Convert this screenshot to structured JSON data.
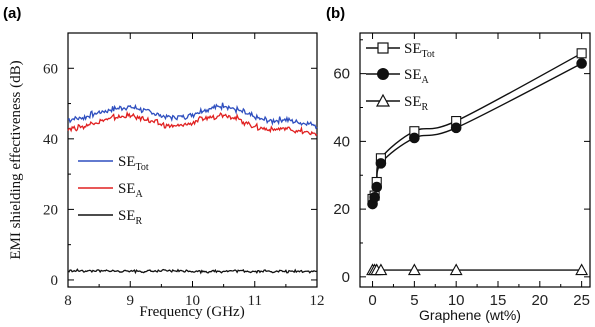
{
  "chart_data": [
    {
      "panel": "(a)",
      "type": "line",
      "xlabel": "Frequency (GHz)",
      "ylabel": "EMI shielding effectiveness (dB)",
      "xlim": [
        8,
        12
      ],
      "ylim": [
        -2,
        70
      ],
      "xticks": [
        "8",
        "9",
        "10",
        "11",
        "12"
      ],
      "yticks": [
        "0",
        "20",
        "40",
        "60"
      ],
      "grid": false,
      "legend_placement": "middle-left",
      "series": [
        {
          "name": "SE_Tot",
          "name_main": "SE",
          "name_sub": "Tot",
          "color": "#2f4fbf",
          "x": [
            8.0,
            8.25,
            8.5,
            8.75,
            9.0,
            9.25,
            9.5,
            9.75,
            10.0,
            10.25,
            10.5,
            10.75,
            11.0,
            11.25,
            11.5,
            11.75,
            12.0
          ],
          "y": [
            45.5,
            46.0,
            47.5,
            48.5,
            49.0,
            48.0,
            46.5,
            46.0,
            47.0,
            48.5,
            49.5,
            48.0,
            46.0,
            45.0,
            45.5,
            44.5,
            44.0
          ]
        },
        {
          "name": "SE_A",
          "name_main": "SE",
          "name_sub": "A",
          "color": "#e02020",
          "x": [
            8.0,
            8.25,
            8.5,
            8.75,
            9.0,
            9.25,
            9.5,
            9.75,
            10.0,
            10.25,
            10.5,
            10.75,
            11.0,
            11.25,
            11.5,
            11.75,
            12.0
          ],
          "y": [
            43.0,
            43.5,
            45.0,
            46.0,
            46.5,
            45.5,
            44.0,
            43.5,
            44.5,
            46.0,
            47.0,
            45.5,
            43.5,
            42.5,
            43.0,
            42.0,
            41.5
          ]
        },
        {
          "name": "SE_R",
          "name_main": "SE",
          "name_sub": "R",
          "color": "#111111",
          "x": [
            8.0,
            8.25,
            8.5,
            8.75,
            9.0,
            9.25,
            9.5,
            9.75,
            10.0,
            10.25,
            10.5,
            10.75,
            11.0,
            11.25,
            11.5,
            11.75,
            12.0
          ],
          "y": [
            2.5,
            2.6,
            2.5,
            2.5,
            2.6,
            2.4,
            2.5,
            2.6,
            2.5,
            2.4,
            2.5,
            2.6,
            2.4,
            2.5,
            2.4,
            2.5,
            2.4
          ]
        }
      ]
    },
    {
      "panel": "(b)",
      "type": "line",
      "xlabel": "Graphene (wt%)",
      "ylabel": "",
      "xlim": [
        -1.5,
        26
      ],
      "ylim": [
        -3,
        72
      ],
      "xticks": [
        "0",
        "5",
        "10",
        "15",
        "20",
        "25"
      ],
      "yticks": [
        "0",
        "20",
        "40",
        "60"
      ],
      "grid": false,
      "legend_placement": "top-left",
      "series": [
        {
          "name": "SE_Tot",
          "name_main": "SE",
          "name_sub": "Tot",
          "marker": "open-square",
          "color": "#111111",
          "x": [
            0,
            0.25,
            0.5,
            1,
            5,
            10,
            25
          ],
          "y": [
            23,
            24,
            28,
            35,
            43,
            46,
            66
          ]
        },
        {
          "name": "SE_A",
          "name_main": "SE",
          "name_sub": "A",
          "marker": "filled-circle",
          "color": "#111111",
          "x": [
            0,
            0.25,
            0.5,
            1,
            5,
            10,
            25
          ],
          "y": [
            21.5,
            23.5,
            26.5,
            33.5,
            41,
            44,
            63
          ]
        },
        {
          "name": "SE_R",
          "name_main": "SE",
          "name_sub": "R",
          "marker": "open-triangle",
          "color": "#111111",
          "x": [
            0,
            0.25,
            0.5,
            1,
            5,
            10,
            25
          ],
          "y": [
            2,
            2,
            2,
            2,
            2,
            2,
            2
          ]
        }
      ]
    }
  ]
}
